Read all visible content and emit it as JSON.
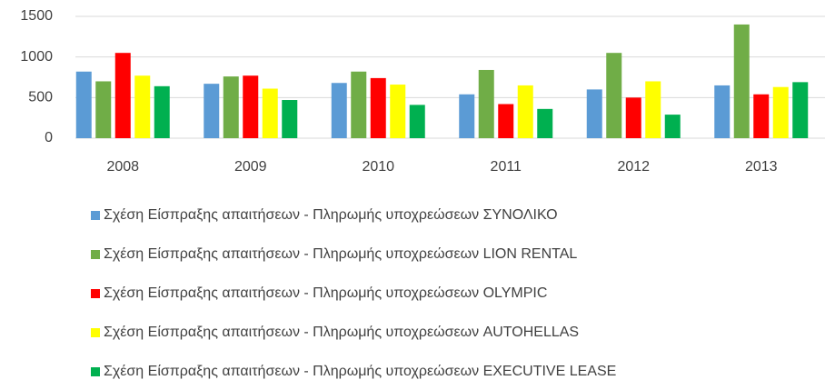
{
  "chart_data": {
    "type": "bar",
    "categories": [
      "2008",
      "2009",
      "2010",
      "2011",
      "2012",
      "2013"
    ],
    "series": [
      {
        "name": "Σχέση Είσπραξης απαιτήσεων - Πληρωμής υποχρεώσεων ΣΥΝΟΛΙΚΟ",
        "color": "#5b9bd5",
        "values": [
          820,
          670,
          680,
          540,
          600,
          650
        ]
      },
      {
        "name": "Σχέση Είσπραξης απαιτήσεων - Πληρωμής υποχρεώσεων LION RENTAL",
        "color": "#70ad47",
        "values": [
          700,
          760,
          820,
          840,
          1050,
          1400
        ]
      },
      {
        "name": "Σχέση Είσπραξης απαιτήσεων - Πληρωμής υποχρεώσεων OLYMPIC",
        "color": "#ff0000",
        "values": [
          1050,
          770,
          740,
          420,
          500,
          540
        ]
      },
      {
        "name": "Σχέση Είσπραξης απαιτήσεων - Πληρωμής υποχρεώσεων AUTOHELLAS",
        "color": "#ffff00",
        "values": [
          770,
          610,
          660,
          650,
          700,
          630
        ]
      },
      {
        "name": "Σχέση Είσπραξης απαιτήσεων - Πληρωμής υποχρεώσεων EXECUTIVE LEASE",
        "color": "#00b050",
        "values": [
          640,
          470,
          410,
          360,
          290,
          690
        ]
      }
    ],
    "ylim": [
      0,
      1500
    ],
    "yticks": [
      0,
      500,
      1000,
      1500
    ],
    "grid": true,
    "legend": "bottom"
  }
}
